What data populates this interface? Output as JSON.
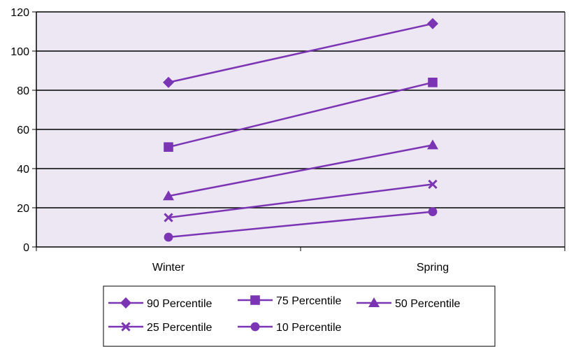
{
  "chart_data": {
    "type": "line",
    "title": "",
    "xlabel": "",
    "ylabel": "",
    "categories": [
      "Winter",
      "Spring"
    ],
    "ylim": [
      0,
      120
    ],
    "yticks": [
      0,
      20,
      40,
      60,
      80,
      100,
      120
    ],
    "grid": true,
    "plot_background": "#ede6f3",
    "line_color": "#7b35b4",
    "legend_position": "bottom",
    "series": [
      {
        "name": "90 Percentile",
        "marker": "diamond-icon",
        "values": [
          84,
          114
        ]
      },
      {
        "name": "75 Percentile",
        "marker": "square-icon",
        "values": [
          51,
          84
        ]
      },
      {
        "name": "50 Percentile",
        "marker": "triangle-icon",
        "values": [
          26,
          52
        ]
      },
      {
        "name": "25 Percentile",
        "marker": "x-icon",
        "values": [
          15,
          32
        ]
      },
      {
        "name": "10 Percentile",
        "marker": "circle-icon",
        "values": [
          5,
          18
        ]
      }
    ]
  }
}
